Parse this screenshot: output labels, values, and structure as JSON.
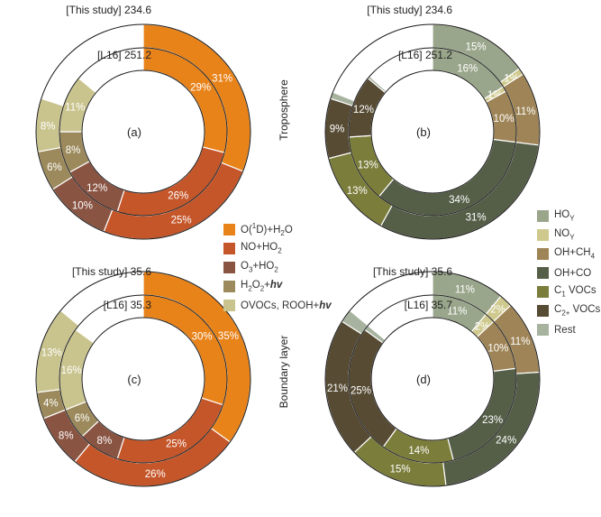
{
  "colors": {
    "O1D": "#e8831a",
    "NO": "#c5562a",
    "O3": "#8a5443",
    "H2O2": "#9c8a5c",
    "OVOC": "#c9c48e",
    "HOY": "#9aa68b",
    "NOY": "#cfc98e",
    "CH4": "#9e8456",
    "CO": "#555f48",
    "C1": "#7b7d3a",
    "C2": "#574b34",
    "Rest": "#a7b29f"
  },
  "side_labels": {
    "troposphere": "Troposphere",
    "boundary": "Boundary layer"
  },
  "legend_left": [
    {
      "key": "O1D",
      "pre": "O(",
      "sup": "1",
      "post": "D)+H2O"
    },
    {
      "key": "NO",
      "pre": "NO+HO2",
      "sup": "",
      "post": ""
    },
    {
      "key": "O3",
      "pre": "O3+HO2",
      "sup": "",
      "post": ""
    },
    {
      "key": "H2O2",
      "pre": "H2O2+",
      "sup": "",
      "post": "",
      "bold_italic": "hv"
    },
    {
      "key": "OVOC",
      "pre": "OVOCs, ROOH+",
      "sup": "",
      "post": "",
      "bold_italic": "hv"
    }
  ],
  "legend_right": [
    {
      "key": "HOY",
      "label": "HO",
      "sub": "Y"
    },
    {
      "key": "NOY",
      "label": "NO",
      "sub": "Y"
    },
    {
      "key": "CH4",
      "label": "OH+CH4",
      "sub": ""
    },
    {
      "key": "CO",
      "label": "OH+CO",
      "sub": ""
    },
    {
      "key": "C1",
      "label": "C",
      "sub": "1",
      "post": " VOCs"
    },
    {
      "key": "C2",
      "label": "C",
      "sub": "2+",
      "post": " VOCs"
    },
    {
      "key": "Rest",
      "label": "Rest",
      "sub": ""
    }
  ],
  "chart_data": [
    {
      "type": "pie",
      "panel_label": "(a)",
      "outer_header": "[This study] 234.6",
      "inner_header": "[L16] 251.2",
      "outer": [
        {
          "key": "O1D",
          "value": 31,
          "label": "31%"
        },
        {
          "key": "NO",
          "value": 25,
          "label": "25%"
        },
        {
          "key": "O3",
          "value": 10,
          "label": "10%"
        },
        {
          "key": "H2O2",
          "value": 6,
          "label": "6%"
        },
        {
          "key": "OVOC",
          "value": 8,
          "label": "8%"
        }
      ],
      "inner": [
        {
          "key": "O1D",
          "value": 29,
          "label": "29%"
        },
        {
          "key": "NO",
          "value": 26,
          "label": "26%"
        },
        {
          "key": "O3",
          "value": 12,
          "label": "12%"
        },
        {
          "key": "H2O2",
          "value": 8,
          "label": "8%"
        },
        {
          "key": "OVOC",
          "value": 11,
          "label": "11%"
        }
      ]
    },
    {
      "type": "pie",
      "panel_label": "(b)",
      "outer_header": "[This study] 234.6",
      "inner_header": "[L16] 251.2",
      "outer": [
        {
          "key": "HOY",
          "value": 15,
          "label": "15%"
        },
        {
          "key": "NOY",
          "value": 1,
          "label": "1%"
        },
        {
          "key": "CH4",
          "value": 11,
          "label": "11%"
        },
        {
          "key": "CO",
          "value": 31,
          "label": "31%"
        },
        {
          "key": "C1",
          "value": 13,
          "label": "13%"
        },
        {
          "key": "C2",
          "value": 9,
          "label": "9%"
        },
        {
          "key": "Rest",
          "value": 1,
          "label": ""
        }
      ],
      "inner": [
        {
          "key": "HOY",
          "value": 16,
          "label": "16%"
        },
        {
          "key": "NOY",
          "value": 1,
          "label": "1%"
        },
        {
          "key": "CH4",
          "value": 10,
          "label": "10%"
        },
        {
          "key": "CO",
          "value": 34,
          "label": "34%"
        },
        {
          "key": "C1",
          "value": 13,
          "label": "13%"
        },
        {
          "key": "C2",
          "value": 12,
          "label": "12%"
        },
        {
          "key": "Rest",
          "value": 0.5,
          "label": ""
        }
      ]
    },
    {
      "type": "pie",
      "panel_label": "(c)",
      "outer_header": "[This study] 35.6",
      "inner_header": "[L16] 35.3",
      "outer": [
        {
          "key": "O1D",
          "value": 35,
          "label": "35%"
        },
        {
          "key": "NO",
          "value": 26,
          "label": "26%"
        },
        {
          "key": "O3",
          "value": 8,
          "label": "8%"
        },
        {
          "key": "H2O2",
          "value": 4,
          "label": "4%"
        },
        {
          "key": "OVOC",
          "value": 13,
          "label": "13%"
        }
      ],
      "inner": [
        {
          "key": "O1D",
          "value": 30,
          "label": "30%"
        },
        {
          "key": "NO",
          "value": 25,
          "label": "25%"
        },
        {
          "key": "O3",
          "value": 8,
          "label": "8%"
        },
        {
          "key": "H2O2",
          "value": 6,
          "label": "6%"
        },
        {
          "key": "OVOC",
          "value": 16,
          "label": "16%"
        }
      ]
    },
    {
      "type": "pie",
      "panel_label": "(d)",
      "outer_header": "[This study] 35.6",
      "inner_header": "[L16] 35.7",
      "outer": [
        {
          "key": "HOY",
          "value": 11,
          "label": "11%"
        },
        {
          "key": "NOY",
          "value": 2,
          "label": "2%"
        },
        {
          "key": "CH4",
          "value": 11,
          "label": "11%"
        },
        {
          "key": "CO",
          "value": 24,
          "label": "24%"
        },
        {
          "key": "C1",
          "value": 15,
          "label": "15%"
        },
        {
          "key": "C2",
          "value": 21,
          "label": "21%"
        },
        {
          "key": "Rest",
          "value": 2,
          "label": ""
        }
      ],
      "inner": [
        {
          "key": "HOY",
          "value": 11,
          "label": "11%"
        },
        {
          "key": "NOY",
          "value": 2,
          "label": "2%"
        },
        {
          "key": "CH4",
          "value": 10,
          "label": "10%"
        },
        {
          "key": "CO",
          "value": 23,
          "label": "23%"
        },
        {
          "key": "C1",
          "value": 14,
          "label": "14%"
        },
        {
          "key": "C2",
          "value": 25,
          "label": "25%"
        },
        {
          "key": "Rest",
          "value": 1,
          "label": ""
        }
      ]
    }
  ]
}
